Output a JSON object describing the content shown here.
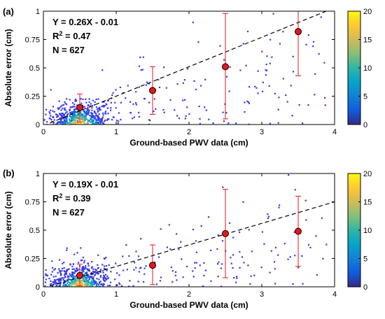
{
  "chart_data": [
    {
      "panel_tag": "(a)",
      "type": "scatter",
      "xlabel": "Ground-based PWV data (cm)",
      "ylabel": "Absolute error (cm)",
      "xlim": [
        0,
        4
      ],
      "ylim": [
        0,
        1
      ],
      "xticks": [
        "0",
        "1",
        "2",
        "3",
        "4"
      ],
      "yticks": [
        "0",
        "0.25",
        "0.5",
        "0.75",
        "1"
      ],
      "annotations": [
        "Y = 0.26X - 0.01",
        "R",
        "2",
        " = 0.47",
        "N = 627"
      ],
      "fit_line": {
        "slope": 0.26,
        "intercept": -0.01,
        "style": "dashed",
        "color": "#000000"
      },
      "binned_means": {
        "x": [
          0.5,
          1.5,
          2.5,
          3.5
        ],
        "y": [
          0.15,
          0.3,
          0.51,
          0.82
        ],
        "err_low": [
          0.02,
          0.09,
          0.05,
          0.43
        ],
        "err_high": [
          0.27,
          0.51,
          0.98,
          1.0
        ]
      },
      "colorbar": {
        "min": 0,
        "max": 20,
        "ticks": [
          "0",
          "5",
          "10",
          "15",
          "20"
        ]
      },
      "n_points": 627
    },
    {
      "panel_tag": "(b)",
      "type": "scatter",
      "xlabel": "Ground-based PWV data (cm)",
      "ylabel": "Absolute error (cm)",
      "xlim": [
        0,
        4
      ],
      "ylim": [
        0,
        1
      ],
      "xticks": [
        "0",
        "1",
        "2",
        "3",
        "4"
      ],
      "yticks": [
        "0",
        "0.25",
        "0.5",
        "0.75",
        "1"
      ],
      "annotations": [
        "Y = 0.19X - 0.01",
        "R",
        "2",
        " = 0.39",
        "N = 627"
      ],
      "fit_line": {
        "slope": 0.19,
        "intercept": -0.01,
        "style": "dashed",
        "color": "#000000"
      },
      "binned_means": {
        "x": [
          0.5,
          1.5,
          2.5,
          3.5
        ],
        "y": [
          0.1,
          0.19,
          0.47,
          0.49
        ],
        "err_low": [
          0.01,
          0.02,
          0.08,
          0.18
        ],
        "err_high": [
          0.2,
          0.37,
          0.86,
          0.8
        ]
      },
      "colorbar": {
        "min": 0,
        "max": 20,
        "ticks": [
          "0",
          "5",
          "10",
          "15",
          "20"
        ]
      },
      "n_points": 627
    }
  ],
  "colors": {
    "scatter_low": "#3a3ae8",
    "mean_marker_fill": "#e8161b",
    "error_bar": "#e8161b",
    "colormap": [
      "#352a87",
      "#0f5cdd",
      "#1481d6",
      "#06a4ca",
      "#2eb7a4",
      "#87bf77",
      "#d1bb59",
      "#fec832",
      "#f9fb0e"
    ]
  }
}
